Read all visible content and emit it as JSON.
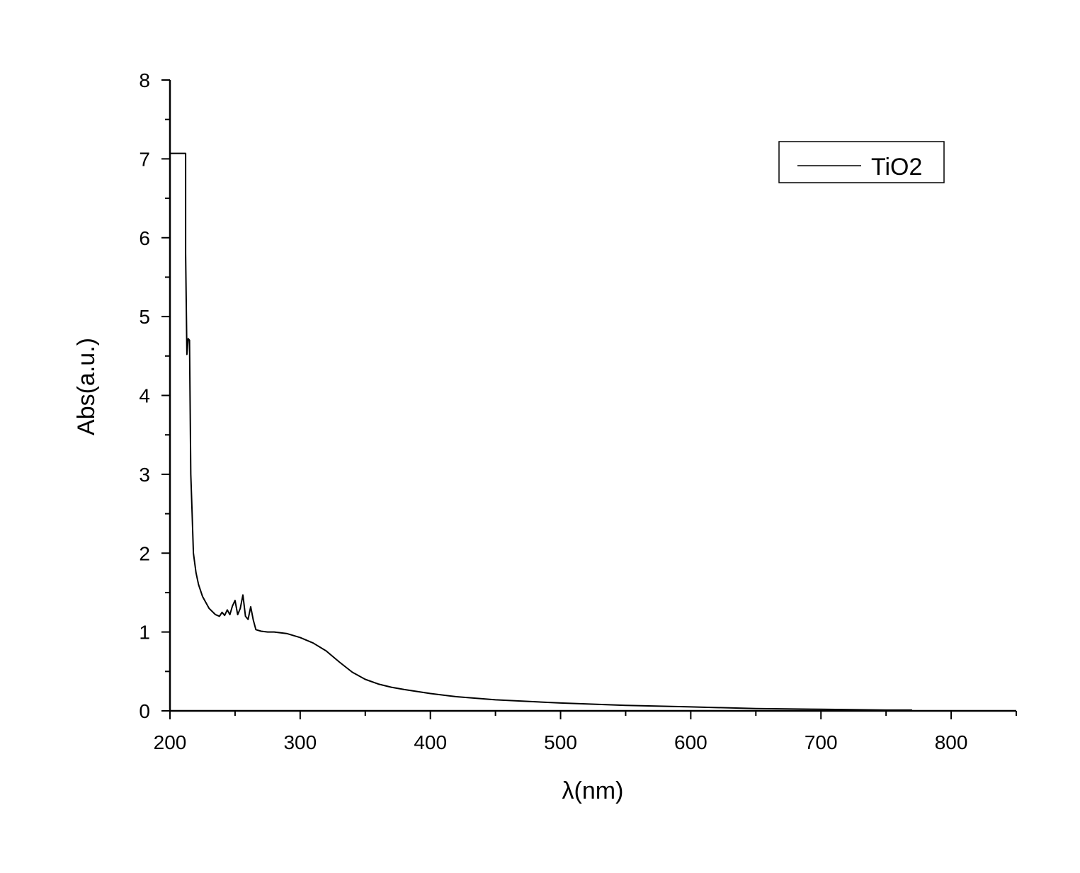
{
  "chart_data": {
    "type": "line",
    "title": "",
    "xlabel": "λ(nm)",
    "ylabel": "Abs(a.u.)",
    "xlim": [
      200,
      850
    ],
    "ylim": [
      0,
      8
    ],
    "x_ticks": [
      200,
      300,
      400,
      500,
      600,
      700,
      800
    ],
    "x_tick_labels": [
      "200",
      "300",
      "400",
      "500",
      "600",
      "700",
      "800"
    ],
    "y_ticks": [
      0,
      1,
      2,
      3,
      4,
      5,
      6,
      7,
      8
    ],
    "y_tick_labels": [
      "0",
      "1",
      "2",
      "3",
      "4",
      "5",
      "6",
      "7",
      "8"
    ],
    "grid": false,
    "legend_position": "top-right",
    "line_color": "#000000",
    "series": [
      {
        "name": "TiO2",
        "x": [
          200,
          200,
          212,
          212,
          213,
          214,
          215,
          216,
          217,
          218,
          220,
          222,
          225,
          230,
          235,
          238,
          240,
          242,
          244,
          246,
          248,
          250,
          252,
          254,
          256,
          258,
          260,
          262,
          264,
          266,
          270,
          275,
          280,
          290,
          300,
          310,
          320,
          330,
          340,
          350,
          360,
          370,
          380,
          400,
          420,
          450,
          500,
          550,
          600,
          650,
          700,
          750,
          770
        ],
        "y": [
          0,
          7.07,
          7.07,
          5.8,
          4.52,
          4.72,
          4.7,
          3.0,
          2.5,
          2.0,
          1.75,
          1.6,
          1.45,
          1.3,
          1.22,
          1.2,
          1.25,
          1.21,
          1.28,
          1.22,
          1.33,
          1.4,
          1.22,
          1.3,
          1.47,
          1.2,
          1.16,
          1.32,
          1.15,
          1.03,
          1.01,
          1.0,
          1.0,
          0.98,
          0.93,
          0.86,
          0.76,
          0.62,
          0.49,
          0.4,
          0.34,
          0.3,
          0.27,
          0.22,
          0.18,
          0.14,
          0.1,
          0.07,
          0.05,
          0.03,
          0.02,
          0.01,
          0.01
        ]
      }
    ]
  }
}
